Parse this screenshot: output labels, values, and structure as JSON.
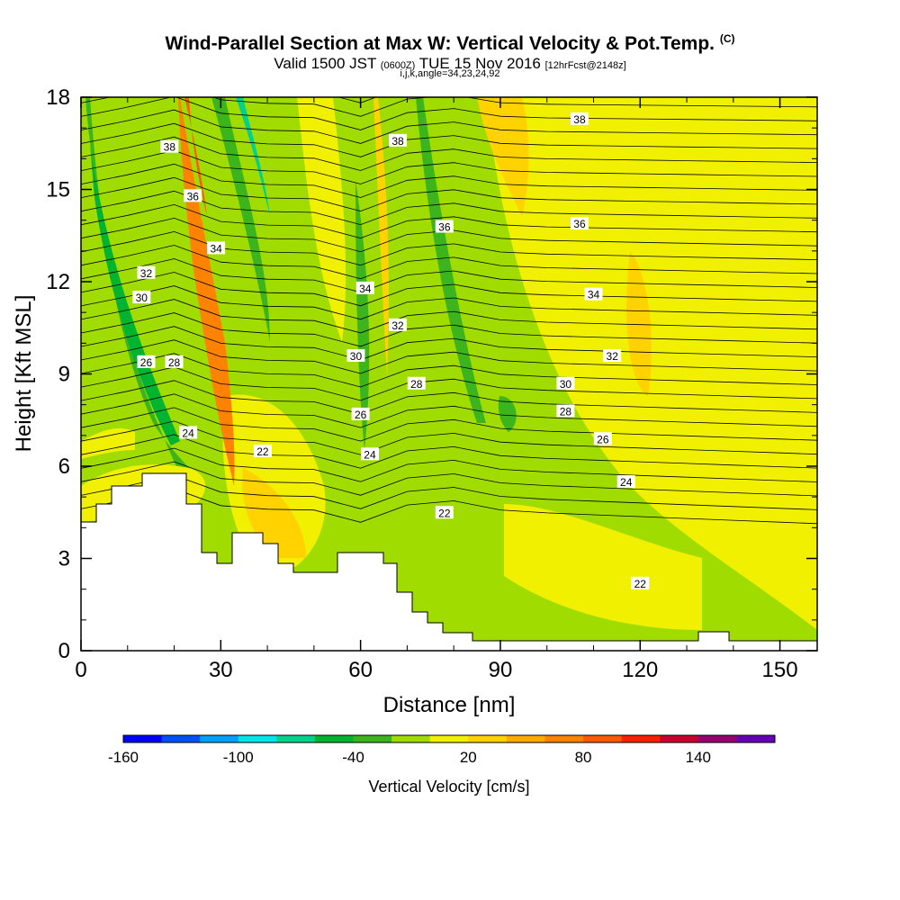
{
  "header": {
    "title": "Wind-Parallel Section at Max W: Vertical Velocity & Pot.Temp.",
    "title_unit": "(C)",
    "subtitle_main": "Valid 1500 JST",
    "subtitle_utc": "(0600Z)",
    "subtitle_date": "TUE 15 Nov 2016",
    "subtitle_fcst": "[12hrFcst@2148z]",
    "line3": "i,j,k,angle=34,23,24,92"
  },
  "chart_data": {
    "type": "heatmap",
    "xlabel": "Distance [nm]",
    "ylabel": "Height [Kft MSL]",
    "xlim": [
      0,
      158
    ],
    "ylim": [
      0,
      18
    ],
    "x_ticks": [
      0,
      30,
      60,
      90,
      120,
      150
    ],
    "y_ticks": [
      0,
      3,
      6,
      9,
      12,
      15,
      18
    ],
    "colorbar": {
      "label": "Vertical Velocity [cm/s]",
      "tick_labels": [
        -160,
        -100,
        -40,
        20,
        80,
        140
      ],
      "tick_values": [
        -160,
        -100,
        -40,
        20,
        80,
        140
      ],
      "min": -160,
      "max": 180,
      "step": 20,
      "colors": [
        "#0000ff",
        "#0050ff",
        "#00a0ff",
        "#00e6e6",
        "#00d28c",
        "#00b432",
        "#3cb41e",
        "#a0dc00",
        "#f0f000",
        "#ffd200",
        "#ffaa00",
        "#ff8200",
        "#ff5a00",
        "#ff1e00",
        "#c80032",
        "#96006e",
        "#6400b4"
      ]
    },
    "contour_labels": [
      {
        "x": 19,
        "y": 16.4,
        "text": "38"
      },
      {
        "x": 68,
        "y": 16.6,
        "text": "38"
      },
      {
        "x": 107,
        "y": 17.3,
        "text": "38"
      },
      {
        "x": 24,
        "y": 14.8,
        "text": "36"
      },
      {
        "x": 78,
        "y": 13.8,
        "text": "36"
      },
      {
        "x": 107,
        "y": 13.9,
        "text": "36"
      },
      {
        "x": 29,
        "y": 13.1,
        "text": "34"
      },
      {
        "x": 61,
        "y": 11.8,
        "text": "34"
      },
      {
        "x": 110,
        "y": 11.6,
        "text": "34"
      },
      {
        "x": 14,
        "y": 12.3,
        "text": "32"
      },
      {
        "x": 68,
        "y": 10.6,
        "text": "32"
      },
      {
        "x": 114,
        "y": 9.6,
        "text": "32"
      },
      {
        "x": 13,
        "y": 11.5,
        "text": "30"
      },
      {
        "x": 59,
        "y": 9.6,
        "text": "30"
      },
      {
        "x": 104,
        "y": 8.7,
        "text": "30"
      },
      {
        "x": 14,
        "y": 9.4,
        "text": "26"
      },
      {
        "x": 20,
        "y": 9.4,
        "text": "28"
      },
      {
        "x": 72,
        "y": 8.7,
        "text": "28"
      },
      {
        "x": 104,
        "y": 7.8,
        "text": "28"
      },
      {
        "x": 60,
        "y": 7.7,
        "text": "26"
      },
      {
        "x": 112,
        "y": 6.9,
        "text": "26"
      },
      {
        "x": 23,
        "y": 7.1,
        "text": "24"
      },
      {
        "x": 62,
        "y": 6.4,
        "text": "24"
      },
      {
        "x": 117,
        "y": 5.5,
        "text": "24"
      },
      {
        "x": 39,
        "y": 6.5,
        "text": "22"
      },
      {
        "x": 78,
        "y": 4.5,
        "text": "22"
      },
      {
        "x": 120,
        "y": 2.2,
        "text": "22"
      }
    ]
  }
}
